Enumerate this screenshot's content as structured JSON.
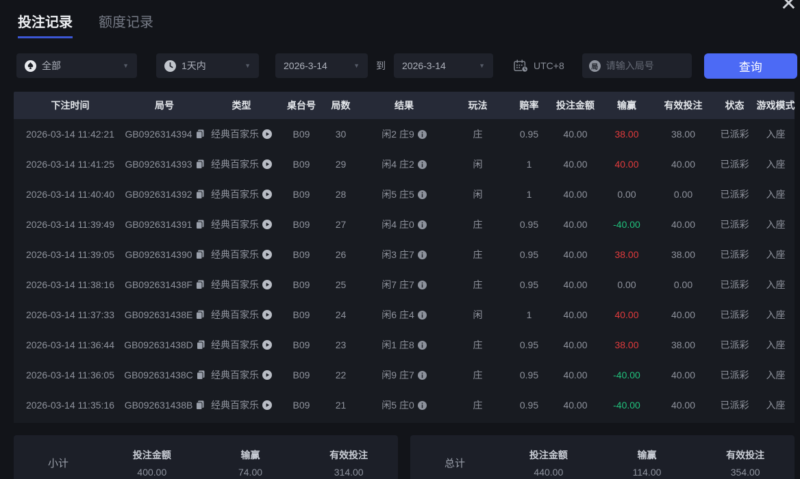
{
  "tabs": [
    {
      "label": "投注记录",
      "active": true
    },
    {
      "label": "额度记录",
      "active": false
    }
  ],
  "close_glyph": "✕",
  "caret_glyph": "▼",
  "filters": {
    "game_dropdown": {
      "value": "全部"
    },
    "time_dropdown": {
      "value": "1天内"
    },
    "date_from": {
      "value": "2026-3-14"
    },
    "to_label": "到",
    "date_to": {
      "value": "2026-3-14"
    },
    "timezone_label": "UTC+8",
    "round_input": {
      "placeholder": "请输入局号",
      "value": "",
      "icon_char": "局"
    },
    "query_button_label": "查询"
  },
  "table": {
    "headers": [
      "下注时间",
      "局号",
      "类型",
      "桌台号",
      "局数",
      "结果",
      "玩法",
      "赔率",
      "投注金额",
      "输赢",
      "有效投注",
      "状态",
      "游戏模式"
    ],
    "rows": [
      {
        "time": "2026-03-14 11:42:21",
        "round_id": "GB0926314394",
        "type": "经典百家乐",
        "table_no": "B09",
        "round_no": "30",
        "result": "闲2 庄9",
        "play": "庄",
        "odds": "0.95",
        "bet": "40.00",
        "win_loss": "38.00",
        "win_color": "red",
        "valid": "38.00",
        "status": "已派彩",
        "mode": "入座"
      },
      {
        "time": "2026-03-14 11:41:25",
        "round_id": "GB0926314393",
        "type": "经典百家乐",
        "table_no": "B09",
        "round_no": "29",
        "result": "闲4 庄2",
        "play": "闲",
        "odds": "1",
        "bet": "40.00",
        "win_loss": "40.00",
        "win_color": "red",
        "valid": "40.00",
        "status": "已派彩",
        "mode": "入座"
      },
      {
        "time": "2026-03-14 11:40:40",
        "round_id": "GB0926314392",
        "type": "经典百家乐",
        "table_no": "B09",
        "round_no": "28",
        "result": "闲5 庄5",
        "play": "闲",
        "odds": "1",
        "bet": "40.00",
        "win_loss": "0.00",
        "win_color": "plain",
        "valid": "0.00",
        "status": "已派彩",
        "mode": "入座"
      },
      {
        "time": "2026-03-14 11:39:49",
        "round_id": "GB0926314391",
        "type": "经典百家乐",
        "table_no": "B09",
        "round_no": "27",
        "result": "闲4 庄0",
        "play": "庄",
        "odds": "0.95",
        "bet": "40.00",
        "win_loss": "-40.00",
        "win_color": "green",
        "valid": "40.00",
        "status": "已派彩",
        "mode": "入座"
      },
      {
        "time": "2026-03-14 11:39:05",
        "round_id": "GB0926314390",
        "type": "经典百家乐",
        "table_no": "B09",
        "round_no": "26",
        "result": "闲3 庄7",
        "play": "庄",
        "odds": "0.95",
        "bet": "40.00",
        "win_loss": "38.00",
        "win_color": "red",
        "valid": "38.00",
        "status": "已派彩",
        "mode": "入座"
      },
      {
        "time": "2026-03-14 11:38:16",
        "round_id": "GB092631438F",
        "type": "经典百家乐",
        "table_no": "B09",
        "round_no": "25",
        "result": "闲7 庄7",
        "play": "庄",
        "odds": "0.95",
        "bet": "40.00",
        "win_loss": "0.00",
        "win_color": "plain",
        "valid": "0.00",
        "status": "已派彩",
        "mode": "入座"
      },
      {
        "time": "2026-03-14 11:37:33",
        "round_id": "GB092631438E",
        "type": "经典百家乐",
        "table_no": "B09",
        "round_no": "24",
        "result": "闲6 庄4",
        "play": "闲",
        "odds": "1",
        "bet": "40.00",
        "win_loss": "40.00",
        "win_color": "red",
        "valid": "40.00",
        "status": "已派彩",
        "mode": "入座"
      },
      {
        "time": "2026-03-14 11:36:44",
        "round_id": "GB092631438D",
        "type": "经典百家乐",
        "table_no": "B09",
        "round_no": "23",
        "result": "闲1 庄8",
        "play": "庄",
        "odds": "0.95",
        "bet": "40.00",
        "win_loss": "38.00",
        "win_color": "red",
        "valid": "38.00",
        "status": "已派彩",
        "mode": "入座"
      },
      {
        "time": "2026-03-14 11:36:05",
        "round_id": "GB092631438C",
        "type": "经典百家乐",
        "table_no": "B09",
        "round_no": "22",
        "result": "闲9 庄7",
        "play": "庄",
        "odds": "0.95",
        "bet": "40.00",
        "win_loss": "-40.00",
        "win_color": "green",
        "valid": "40.00",
        "status": "已派彩",
        "mode": "入座"
      },
      {
        "time": "2026-03-14 11:35:16",
        "round_id": "GB092631438B",
        "type": "经典百家乐",
        "table_no": "B09",
        "round_no": "21",
        "result": "闲5 庄0",
        "play": "庄",
        "odds": "0.95",
        "bet": "40.00",
        "win_loss": "-40.00",
        "win_color": "green",
        "valid": "40.00",
        "status": "已派彩",
        "mode": "入座"
      }
    ]
  },
  "summary": {
    "subtotal": {
      "title": "小计",
      "bet_label": "投注金额",
      "bet": "400.00",
      "winloss_label": "输赢",
      "winloss": "74.00",
      "valid_label": "有效投注",
      "valid": "314.00"
    },
    "total": {
      "title": "总计",
      "bet_label": "投注金额",
      "bet": "440.00",
      "winloss_label": "输赢",
      "winloss": "114.00",
      "valid_label": "有效投注",
      "valid": "354.00"
    }
  },
  "colors": {
    "accent_blue": "#4c6af5",
    "tab_underline": "#3c57d5",
    "win_red": "#e23b3d",
    "loss_green": "#21c17c"
  }
}
